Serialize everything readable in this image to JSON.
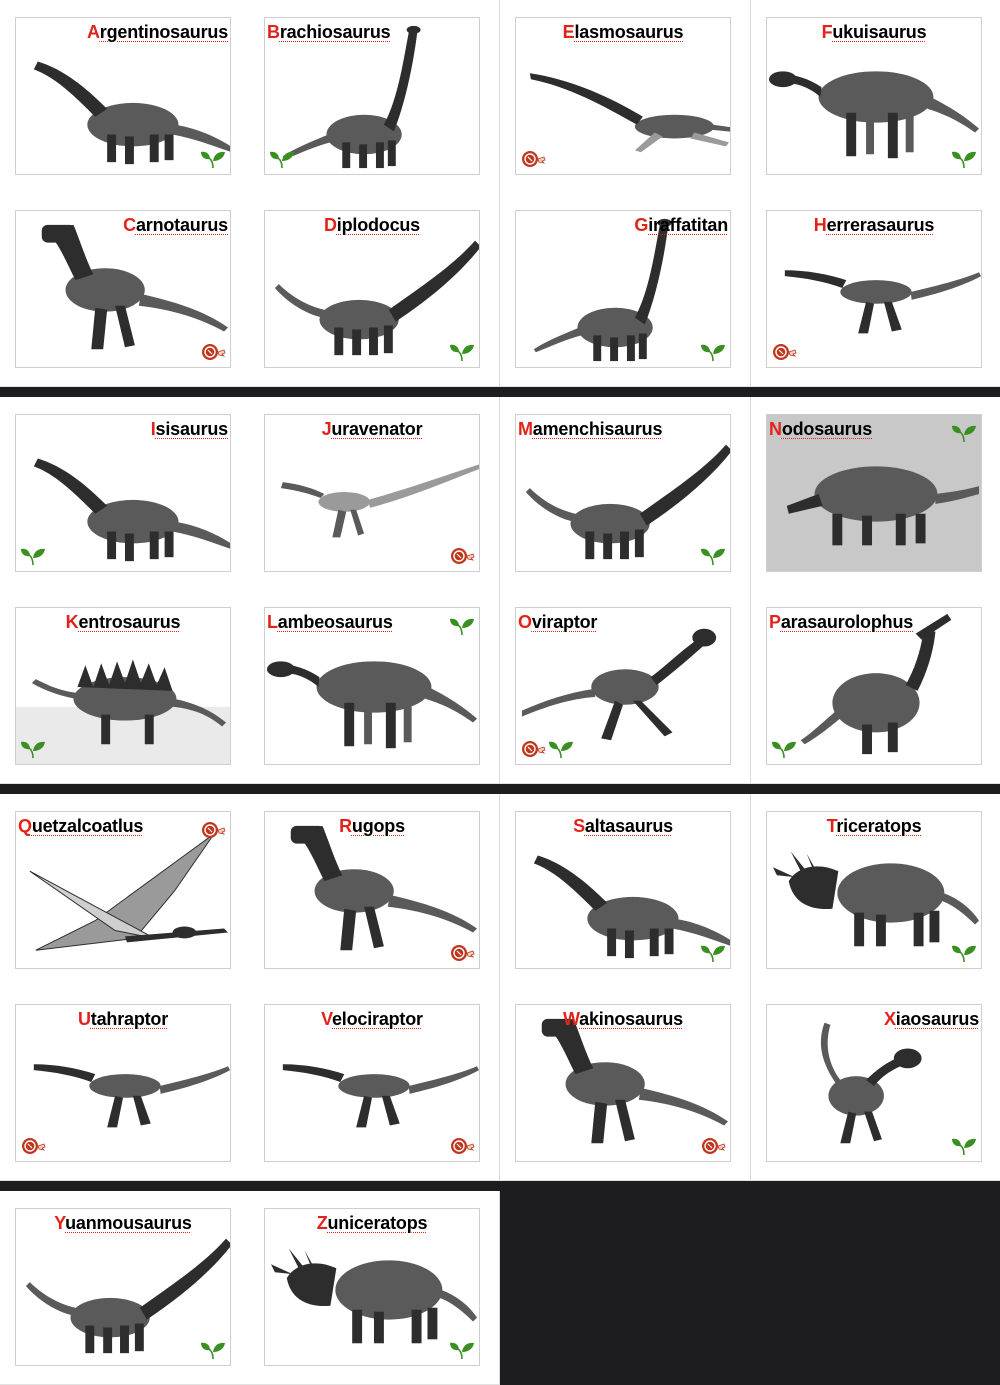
{
  "theme": {
    "title_initial_color": "#e2231a",
    "herbivore_color": "#3a8f22",
    "carnivore_color": "#c0361d",
    "background": "#1d1d1f"
  },
  "cards": [
    {
      "initial": "A",
      "rest": "rgentinosaurus",
      "diet": [
        "herbivore"
      ],
      "art": "sauropod",
      "title_align": "right"
    },
    {
      "initial": "B",
      "rest": "rachiosaurus",
      "diet": [
        "herbivore"
      ],
      "art": "tall-sauropod",
      "title_align": "left"
    },
    {
      "initial": "E",
      "rest": "lasmosaurus",
      "diet": [
        "carnivore"
      ],
      "art": "plesiosaur",
      "title_align": "center"
    },
    {
      "initial": "F",
      "rest": "ukuisaurus",
      "diet": [
        "herbivore"
      ],
      "art": "ornithopod",
      "title_align": "center"
    },
    {
      "initial": "C",
      "rest": "arnotaurus",
      "diet": [
        "carnivore"
      ],
      "art": "theropod",
      "title_align": "right"
    },
    {
      "initial": "D",
      "rest": "iplodocus",
      "diet": [
        "herbivore"
      ],
      "art": "sauropod-long",
      "title_align": "center"
    },
    {
      "initial": "G",
      "rest": "iraffatitan",
      "diet": [
        "herbivore"
      ],
      "art": "tall-sauropod",
      "title_align": "right"
    },
    {
      "initial": "H",
      "rest": "errerasaurus",
      "diet": [
        "carnivore"
      ],
      "art": "raptor",
      "title_align": "center"
    },
    {
      "initial": "I",
      "rest": "sisaurus",
      "diet": [
        "herbivore"
      ],
      "art": "sauropod",
      "title_align": "right"
    },
    {
      "initial": "J",
      "rest": "uravenator",
      "diet": [
        "carnivore"
      ],
      "art": "small-theropod",
      "title_align": "center"
    },
    {
      "initial": "M",
      "rest": "amenchisaurus",
      "diet": [
        "herbivore"
      ],
      "art": "sauropod-long",
      "title_align": "left"
    },
    {
      "initial": "N",
      "rest": "odosaurus",
      "diet": [
        "herbivore"
      ],
      "art": "ankylosaur",
      "title_align": "left"
    },
    {
      "initial": "K",
      "rest": "entrosaurus",
      "diet": [
        "herbivore"
      ],
      "art": "stegosaur",
      "title_align": "center"
    },
    {
      "initial": "L",
      "rest": "ambeosaurus",
      "diet": [
        "herbivore"
      ],
      "art": "ornithopod",
      "title_align": "left"
    },
    {
      "initial": "O",
      "rest": "viraptor",
      "diet": [
        "carnivore",
        "herbivore"
      ],
      "art": "oviraptor",
      "title_align": "left"
    },
    {
      "initial": "P",
      "rest": "arasaurolophus",
      "diet": [
        "herbivore"
      ],
      "art": "hadrosaur",
      "title_align": "left"
    },
    {
      "initial": "Q",
      "rest": "uetzalcoatlus",
      "diet": [
        "carnivore"
      ],
      "art": "pterosaur",
      "title_align": "left"
    },
    {
      "initial": "R",
      "rest": "ugops",
      "diet": [
        "carnivore"
      ],
      "art": "theropod",
      "title_align": "center"
    },
    {
      "initial": "S",
      "rest": "altasaurus",
      "diet": [
        "herbivore"
      ],
      "art": "sauropod",
      "title_align": "center"
    },
    {
      "initial": "T",
      "rest": "riceratops",
      "diet": [
        "herbivore"
      ],
      "art": "ceratopsian",
      "title_align": "center"
    },
    {
      "initial": "U",
      "rest": "tahraptor",
      "diet": [
        "carnivore"
      ],
      "art": "raptor",
      "title_align": "center"
    },
    {
      "initial": "V",
      "rest": "elociraptor",
      "diet": [
        "carnivore"
      ],
      "art": "raptor",
      "title_align": "center"
    },
    {
      "initial": "W",
      "rest": "akinosaurus",
      "diet": [
        "carnivore"
      ],
      "art": "theropod",
      "title_align": "center"
    },
    {
      "initial": "X",
      "rest": "iaosaurus",
      "diet": [
        "herbivore"
      ],
      "art": "small-ornithopod",
      "title_align": "right"
    },
    {
      "initial": "Y",
      "rest": "uanmousaurus",
      "diet": [
        "herbivore"
      ],
      "art": "sauropod-long",
      "title_align": "center"
    },
    {
      "initial": "Z",
      "rest": "uniceratops",
      "diet": [
        "herbivore"
      ],
      "art": "ceratopsian",
      "title_align": "center"
    }
  ]
}
